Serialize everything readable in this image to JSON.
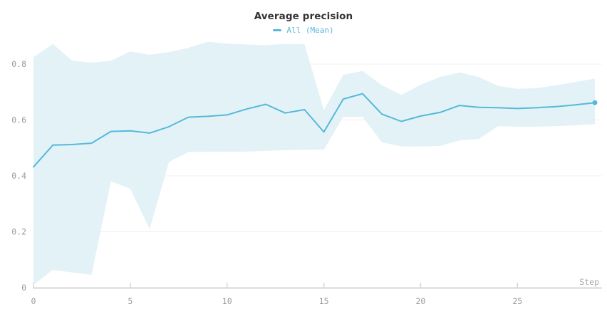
{
  "header": {
    "title": "Average precision"
  },
  "legend": {
    "items": [
      {
        "label": "All (Mean)"
      }
    ]
  },
  "axes": {
    "x_label": "Step",
    "x_tick_labels": [
      "0",
      "5",
      "10",
      "15",
      "20",
      "25"
    ],
    "y_tick_labels": [
      "0",
      "0.2",
      "0.4",
      "0.6",
      "0.8"
    ]
  },
  "colors": {
    "accent": "#56b9d8",
    "band": "#e3f2f7",
    "grid": "#ececec",
    "axis": "#d6d6d6",
    "tick_label": "#9a9a9a",
    "step_label": "#a8a8a8",
    "title": "#333333"
  },
  "chart_data": {
    "type": "line",
    "title": "Average precision",
    "xlabel": "Step",
    "ylabel": "",
    "grid": "horizontal",
    "legend_position": "top-center",
    "xlim": [
      0,
      29.4
    ],
    "ylim": [
      0,
      0.89
    ],
    "x_ticks": [
      0,
      5,
      10,
      15,
      20,
      25
    ],
    "y_ticks": [
      0,
      0.2,
      0.4,
      0.6,
      0.8
    ],
    "x": [
      0,
      1,
      2,
      3,
      4,
      5,
      6,
      7,
      8,
      9,
      10,
      11,
      12,
      13,
      14,
      15,
      16,
      17,
      18,
      19,
      20,
      21,
      22,
      23,
      24,
      25,
      26,
      27,
      28,
      29
    ],
    "series": [
      {
        "name": "All (Mean)",
        "color": "#56b9d8",
        "end_marker": true,
        "values": [
          0.432,
          0.51,
          0.512,
          0.517,
          0.559,
          0.561,
          0.553,
          0.576,
          0.61,
          0.613,
          0.618,
          0.639,
          0.656,
          0.625,
          0.637,
          0.557,
          0.675,
          0.694,
          0.621,
          0.595,
          0.614,
          0.627,
          0.652,
          0.645,
          0.644,
          0.641,
          0.644,
          0.648,
          0.654,
          0.662
        ]
      }
    ],
    "band": {
      "name": "All (range)",
      "color": "#e3f2f7",
      "upper": [
        0.825,
        0.872,
        0.812,
        0.805,
        0.812,
        0.845,
        0.833,
        0.843,
        0.858,
        0.88,
        0.873,
        0.87,
        0.868,
        0.872,
        0.871,
        0.635,
        0.762,
        0.775,
        0.724,
        0.69,
        0.726,
        0.754,
        0.77,
        0.754,
        0.722,
        0.711,
        0.714,
        0.724,
        0.736,
        0.748
      ],
      "lower": [
        0.01,
        0.064,
        0.054,
        0.046,
        0.38,
        0.354,
        0.21,
        0.45,
        0.485,
        0.486,
        0.486,
        0.487,
        0.49,
        0.492,
        0.493,
        0.494,
        0.611,
        0.611,
        0.52,
        0.505,
        0.505,
        0.507,
        0.527,
        0.532,
        0.578,
        0.576,
        0.576,
        0.578,
        0.581,
        0.585
      ]
    }
  }
}
